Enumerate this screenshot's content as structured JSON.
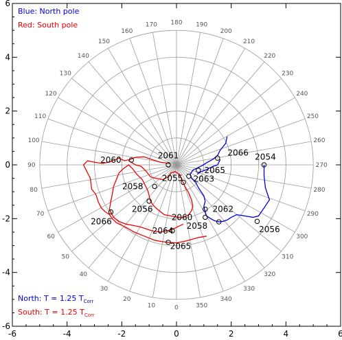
{
  "chart_data": {
    "type": "line",
    "title": "",
    "xlabel": "",
    "ylabel": "",
    "xlim": [
      -6,
      6
    ],
    "ylim": [
      -6,
      6
    ],
    "x_ticks": [
      "-6",
      "-4",
      "-2",
      "0",
      "2",
      "4",
      "6"
    ],
    "y_ticks": [
      "-6",
      "-4",
      "-2",
      "0",
      "2",
      "4",
      "6"
    ],
    "polar_grid": {
      "radii": [
        1,
        2,
        3,
        4,
        5
      ],
      "angle_labels": [
        "0",
        "10",
        "20",
        "30",
        "40",
        "50",
        "60",
        "70",
        "80",
        "90",
        "100",
        "110",
        "120",
        "130",
        "140",
        "150",
        "160",
        "170",
        "180",
        "190",
        "200",
        "210",
        "220",
        "230",
        "240",
        "250",
        "260",
        "270",
        "280",
        "290",
        "300",
        "310",
        "320",
        "330",
        "340",
        "350"
      ]
    },
    "legend_top": [
      {
        "text": "Blue: North pole",
        "color": "#0000dd"
      },
      {
        "text": "Red: South pole",
        "color": "#ee0000"
      }
    ],
    "legend_bottom": [
      {
        "text": "North: T = 1.25 T",
        "sub": "Corr",
        "color": "#0000dd"
      },
      {
        "text": "South: T = 1.25 T",
        "sub": "Corr",
        "color": "#ee0000"
      }
    ],
    "series": [
      {
        "color": "#0000dd",
        "points": [
          [
            1.85,
            1.05
          ],
          [
            1.8,
            0.8
          ],
          [
            1.6,
            0.55
          ],
          [
            1.5,
            0.35
          ],
          [
            1.35,
            0.22
          ],
          [
            1.1,
            0.08
          ],
          [
            0.95,
            -0.02
          ],
          [
            0.75,
            -0.12
          ],
          [
            0.6,
            -0.2
          ],
          [
            0.5,
            -0.35
          ],
          [
            0.55,
            -0.5
          ],
          [
            0.7,
            -0.65
          ],
          [
            0.8,
            -0.85
          ],
          [
            0.9,
            -1.0
          ],
          [
            1.0,
            -1.15
          ],
          [
            1.05,
            -1.35
          ],
          [
            1.0,
            -1.55
          ],
          [
            1.05,
            -1.75
          ],
          [
            1.1,
            -1.9
          ],
          [
            1.25,
            -2.0
          ],
          [
            1.4,
            -2.08
          ],
          [
            1.55,
            -2.12
          ],
          [
            1.7,
            -2.1
          ],
          [
            1.85,
            -2.05
          ],
          [
            2.0,
            -1.95
          ],
          [
            2.2,
            -1.85
          ],
          [
            2.5,
            -1.9
          ],
          [
            2.8,
            -1.95
          ],
          [
            3.0,
            -1.9
          ],
          [
            3.1,
            -1.75
          ],
          [
            3.2,
            -1.6
          ],
          [
            3.3,
            -1.45
          ],
          [
            3.4,
            -1.3
          ],
          [
            3.35,
            -1.15
          ],
          [
            3.3,
            -1.0
          ],
          [
            3.25,
            -0.85
          ],
          [
            3.22,
            -0.6
          ],
          [
            3.2,
            -0.4
          ],
          [
            3.2,
            -0.2
          ],
          [
            3.2,
            0
          ]
        ]
      },
      {
        "color": "#0000dd",
        "points": [
          [
            1.6,
            0.2
          ],
          [
            1.5,
            0.0
          ],
          [
            1.35,
            -0.05
          ],
          [
            1.2,
            -0.12
          ],
          [
            1.05,
            -0.2
          ],
          [
            0.9,
            -0.25
          ],
          [
            0.75,
            -0.35
          ]
        ]
      },
      {
        "color": "#ee0000",
        "points": [
          [
            -0.25,
            0.05
          ],
          [
            -0.6,
            0.1
          ],
          [
            -0.9,
            0.2
          ],
          [
            -1.2,
            0.3
          ],
          [
            -1.5,
            0.28
          ],
          [
            -1.7,
            0.2
          ],
          [
            -1.9,
            0.15
          ],
          [
            -2.1,
            0.25
          ],
          [
            -2.4,
            0.12
          ],
          [
            -2.7,
            0.05
          ],
          [
            -3.0,
            0.1
          ],
          [
            -3.25,
            0.15
          ],
          [
            -3.4,
            0.0
          ],
          [
            -3.3,
            -0.2
          ],
          [
            -3.15,
            -0.5
          ],
          [
            -3.1,
            -0.9
          ],
          [
            -2.95,
            -1.1
          ],
          [
            -2.85,
            -1.4
          ],
          [
            -2.75,
            -1.6
          ],
          [
            -2.6,
            -1.75
          ],
          [
            -2.45,
            -1.85
          ],
          [
            -2.35,
            -2.0
          ],
          [
            -2.2,
            -2.15
          ],
          [
            -2.0,
            -2.25
          ],
          [
            -1.8,
            -2.35
          ],
          [
            -1.55,
            -2.5
          ],
          [
            -1.3,
            -2.6
          ],
          [
            -1.05,
            -2.7
          ],
          [
            -0.8,
            -2.8
          ],
          [
            -0.55,
            -2.85
          ],
          [
            -0.3,
            -2.88
          ],
          [
            0.0,
            -2.9
          ],
          [
            0.4,
            -2.82
          ],
          [
            0.8,
            -2.7
          ],
          [
            1.1,
            -2.65
          ]
        ]
      },
      {
        "color": "#ee0000",
        "points": [
          [
            -1.75,
            0.15
          ],
          [
            -1.5,
            0.0
          ],
          [
            -1.3,
            -0.05
          ],
          [
            -1.1,
            -0.25
          ],
          [
            -0.95,
            -0.45
          ],
          [
            -0.75,
            -0.5
          ],
          [
            -0.5,
            -0.55
          ],
          [
            -0.3,
            -0.45
          ],
          [
            -0.2,
            -0.3
          ],
          [
            -0.05,
            -0.25
          ],
          [
            0.1,
            -0.35
          ],
          [
            0.2,
            -0.55
          ],
          [
            0.3,
            -0.8
          ],
          [
            0.45,
            -1.05
          ],
          [
            0.55,
            -1.3
          ],
          [
            0.6,
            -1.55
          ],
          [
            0.55,
            -1.7
          ],
          [
            0.45,
            -1.85
          ],
          [
            0.25,
            -1.95
          ],
          [
            0.05,
            -1.95
          ],
          [
            -0.2,
            -1.9
          ],
          [
            -0.45,
            -1.85
          ],
          [
            -0.7,
            -1.65
          ],
          [
            -0.85,
            -1.5
          ],
          [
            -0.95,
            -1.35
          ],
          [
            -1.0,
            -1.15
          ],
          [
            -1.05,
            -0.95
          ],
          [
            -1.15,
            -0.75
          ],
          [
            -1.25,
            -0.55
          ],
          [
            -1.45,
            -0.35
          ],
          [
            -1.6,
            -0.15
          ],
          [
            -1.75,
            0.0
          ],
          [
            -1.95,
            -0.15
          ],
          [
            -2.1,
            -0.3
          ],
          [
            -2.2,
            -0.55
          ],
          [
            -2.3,
            -0.8
          ],
          [
            -2.35,
            -1.1
          ],
          [
            -2.4,
            -1.35
          ],
          [
            -2.45,
            -1.65
          ],
          [
            -2.3,
            -1.95
          ],
          [
            -2.1,
            -2.1
          ],
          [
            -1.85,
            -2.2
          ],
          [
            -1.6,
            -2.25
          ],
          [
            -1.35,
            -2.3
          ],
          [
            -1.1,
            -2.38
          ],
          [
            -0.9,
            -2.45
          ],
          [
            -0.6,
            -2.5
          ],
          [
            -0.35,
            -2.45
          ],
          [
            -0.15,
            -2.4
          ],
          [
            0.05,
            -2.3
          ],
          [
            0.25,
            -2.2
          ]
        ]
      }
    ],
    "markers": [
      {
        "x": 3.2,
        "y": 0.0,
        "label": "2054",
        "color": "#0000dd",
        "dx": 0.05,
        "dy": 0.3
      },
      {
        "x": 1.5,
        "y": 0.25,
        "label": "2066",
        "color": "#0000dd",
        "dx": 0.75,
        "dy": 0.2
      },
      {
        "x": 0.8,
        "y": -0.2,
        "label": "2065",
        "color": "#0000dd",
        "dx": 0.6,
        "dy": 0.0
      },
      {
        "x": 0.45,
        "y": -0.42,
        "label": "2063",
        "color": "#0000dd",
        "dx": 0.55,
        "dy": -0.1
      },
      {
        "x": 1.05,
        "y": -1.65,
        "label": "2062",
        "color": "#0000dd",
        "dx": 0.65,
        "dy": 0.0
      },
      {
        "x": 1.05,
        "y": -1.95,
        "label": "2060",
        "color": "#0000dd",
        "dx": -0.85,
        "dy": 0.0
      },
      {
        "x": 1.55,
        "y": -2.12,
        "label": "2058",
        "color": "#0000dd",
        "dx": -0.8,
        "dy": -0.15
      },
      {
        "x": 2.95,
        "y": -2.1,
        "label": "2056",
        "color": "#0000dd",
        "dx": 0.45,
        "dy": -0.3
      },
      {
        "x": -0.3,
        "y": 0.0,
        "label": "2061",
        "color": "#ee0000",
        "dx": 0.0,
        "dy": 0.35
      },
      {
        "x": -1.65,
        "y": 0.18,
        "label": "2060",
        "color": "#ee0000",
        "dx": -0.75,
        "dy": 0.0
      },
      {
        "x": 0.25,
        "y": -0.65,
        "label": "2055",
        "color": "#ee0000",
        "dx": -0.4,
        "dy": 0.15
      },
      {
        "x": -0.8,
        "y": -0.8,
        "label": "2058",
        "color": "#ee0000",
        "dx": -0.8,
        "dy": 0.0
      },
      {
        "x": -1.0,
        "y": -1.35,
        "label": "2056",
        "color": "#ee0000",
        "dx": -0.25,
        "dy": -0.3
      },
      {
        "x": -2.4,
        "y": -1.75,
        "label": "2066",
        "color": "#ee0000",
        "dx": -0.35,
        "dy": -0.35
      },
      {
        "x": -0.15,
        "y": -2.45,
        "label": "2064",
        "color": "#ee0000",
        "dx": -0.35,
        "dy": 0.0
      },
      {
        "x": -0.3,
        "y": -2.88,
        "label": "2065",
        "color": "#ee0000",
        "dx": 0.45,
        "dy": -0.15
      }
    ]
  }
}
